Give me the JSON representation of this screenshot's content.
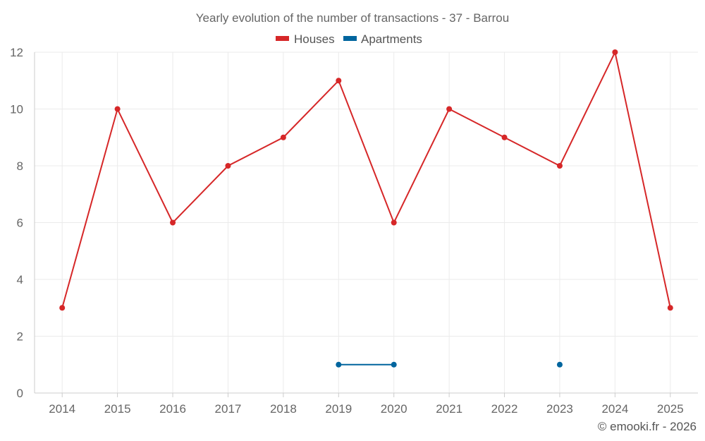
{
  "chart_data": {
    "type": "line",
    "title": "Yearly evolution of the number of transactions - 37 - Barrou",
    "categories": [
      "2014",
      "2015",
      "2016",
      "2017",
      "2018",
      "2019",
      "2020",
      "2021",
      "2022",
      "2023",
      "2024",
      "2025"
    ],
    "ylim": [
      0,
      12
    ],
    "yticks": [
      0,
      2,
      4,
      6,
      8,
      10,
      12
    ],
    "grid": true,
    "legend_position": "top-center",
    "series": [
      {
        "name": "Houses",
        "color": "#d62728",
        "values": [
          3,
          10,
          6,
          8,
          9,
          11,
          6,
          10,
          9,
          8,
          12,
          3
        ]
      },
      {
        "name": "Apartments",
        "color": "#00659e",
        "values": [
          null,
          null,
          null,
          null,
          null,
          1,
          1,
          null,
          null,
          1,
          null,
          null
        ]
      }
    ]
  },
  "credit": "© emooki.fr - 2026"
}
